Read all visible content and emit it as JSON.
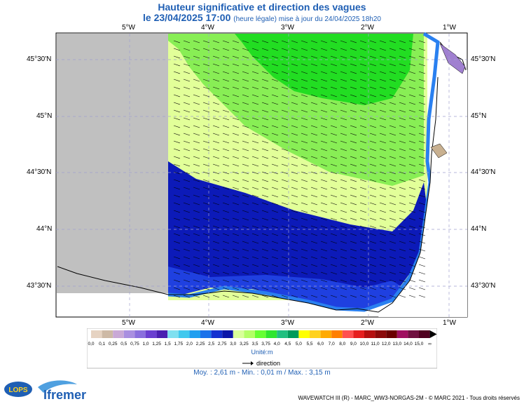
{
  "title": "Hauteur significative et direction des vagues",
  "subtitle": {
    "datetime": "le 23/04/2025 17:00",
    "note": "(heure légale) mise à jour du 24/04/2025 18h20"
  },
  "axes": {
    "lon_labels": [
      "5°W",
      "4°W",
      "3°W",
      "2°W",
      "1°W"
    ],
    "lat_labels_right": [
      "45°30'N",
      "45°N",
      "44°30'N",
      "44°N",
      "43°30'N"
    ],
    "lat_labels_left": [
      "45°30'N",
      "45°N",
      "44°30'N",
      "44°N",
      "43°30'N"
    ]
  },
  "legend": {
    "values": [
      "0,0",
      "0,1",
      "0,25",
      "0,5",
      "0,75",
      "1,0",
      "1,25",
      "1,5",
      "1,75",
      "2,0",
      "2,25",
      "2,5",
      "2,75",
      "3,0",
      "3,25",
      "3,5",
      "3,75",
      "4,0",
      "4,5",
      "5,0",
      "5,5",
      "6,0",
      "7,0",
      "8,0",
      "9,0",
      "10,0",
      "11,0",
      "12,0",
      "13,0",
      "14,0",
      "15,0",
      "∞"
    ],
    "colors": [
      "#e6d3c2",
      "#cdb9a5",
      "#c9a9d6",
      "#a98fe0",
      "#8a6fdd",
      "#6a3fd0",
      "#4a1fb0",
      "#7fe0f0",
      "#40c8ee",
      "#1f9ff0",
      "#1b72ea",
      "#1431d0",
      "#0b16a8",
      "#d9ff99",
      "#b3ff66",
      "#66ff33",
      "#2ee62e",
      "#20c080",
      "#009a5a",
      "#ffff00",
      "#ffd21f",
      "#ffaa00",
      "#ff7f00",
      "#ff5050",
      "#e62020",
      "#b51010",
      "#8b0a0a",
      "#6b0000",
      "#a01060",
      "#701040",
      "#500020"
    ],
    "unit": "Unité:m",
    "direction_label": "direction"
  },
  "stats": "Moy. : 2,61 m   -   Min. : 0,01 m / Max. : 3,15 m",
  "logos": {
    "lops": "LOPS",
    "ifremer": "Ifremer"
  },
  "credit": "WAVEWATCH III (R) - MARC_WW3-NORGAS-2M - © MARC 2021 - Tous droits réservés"
}
